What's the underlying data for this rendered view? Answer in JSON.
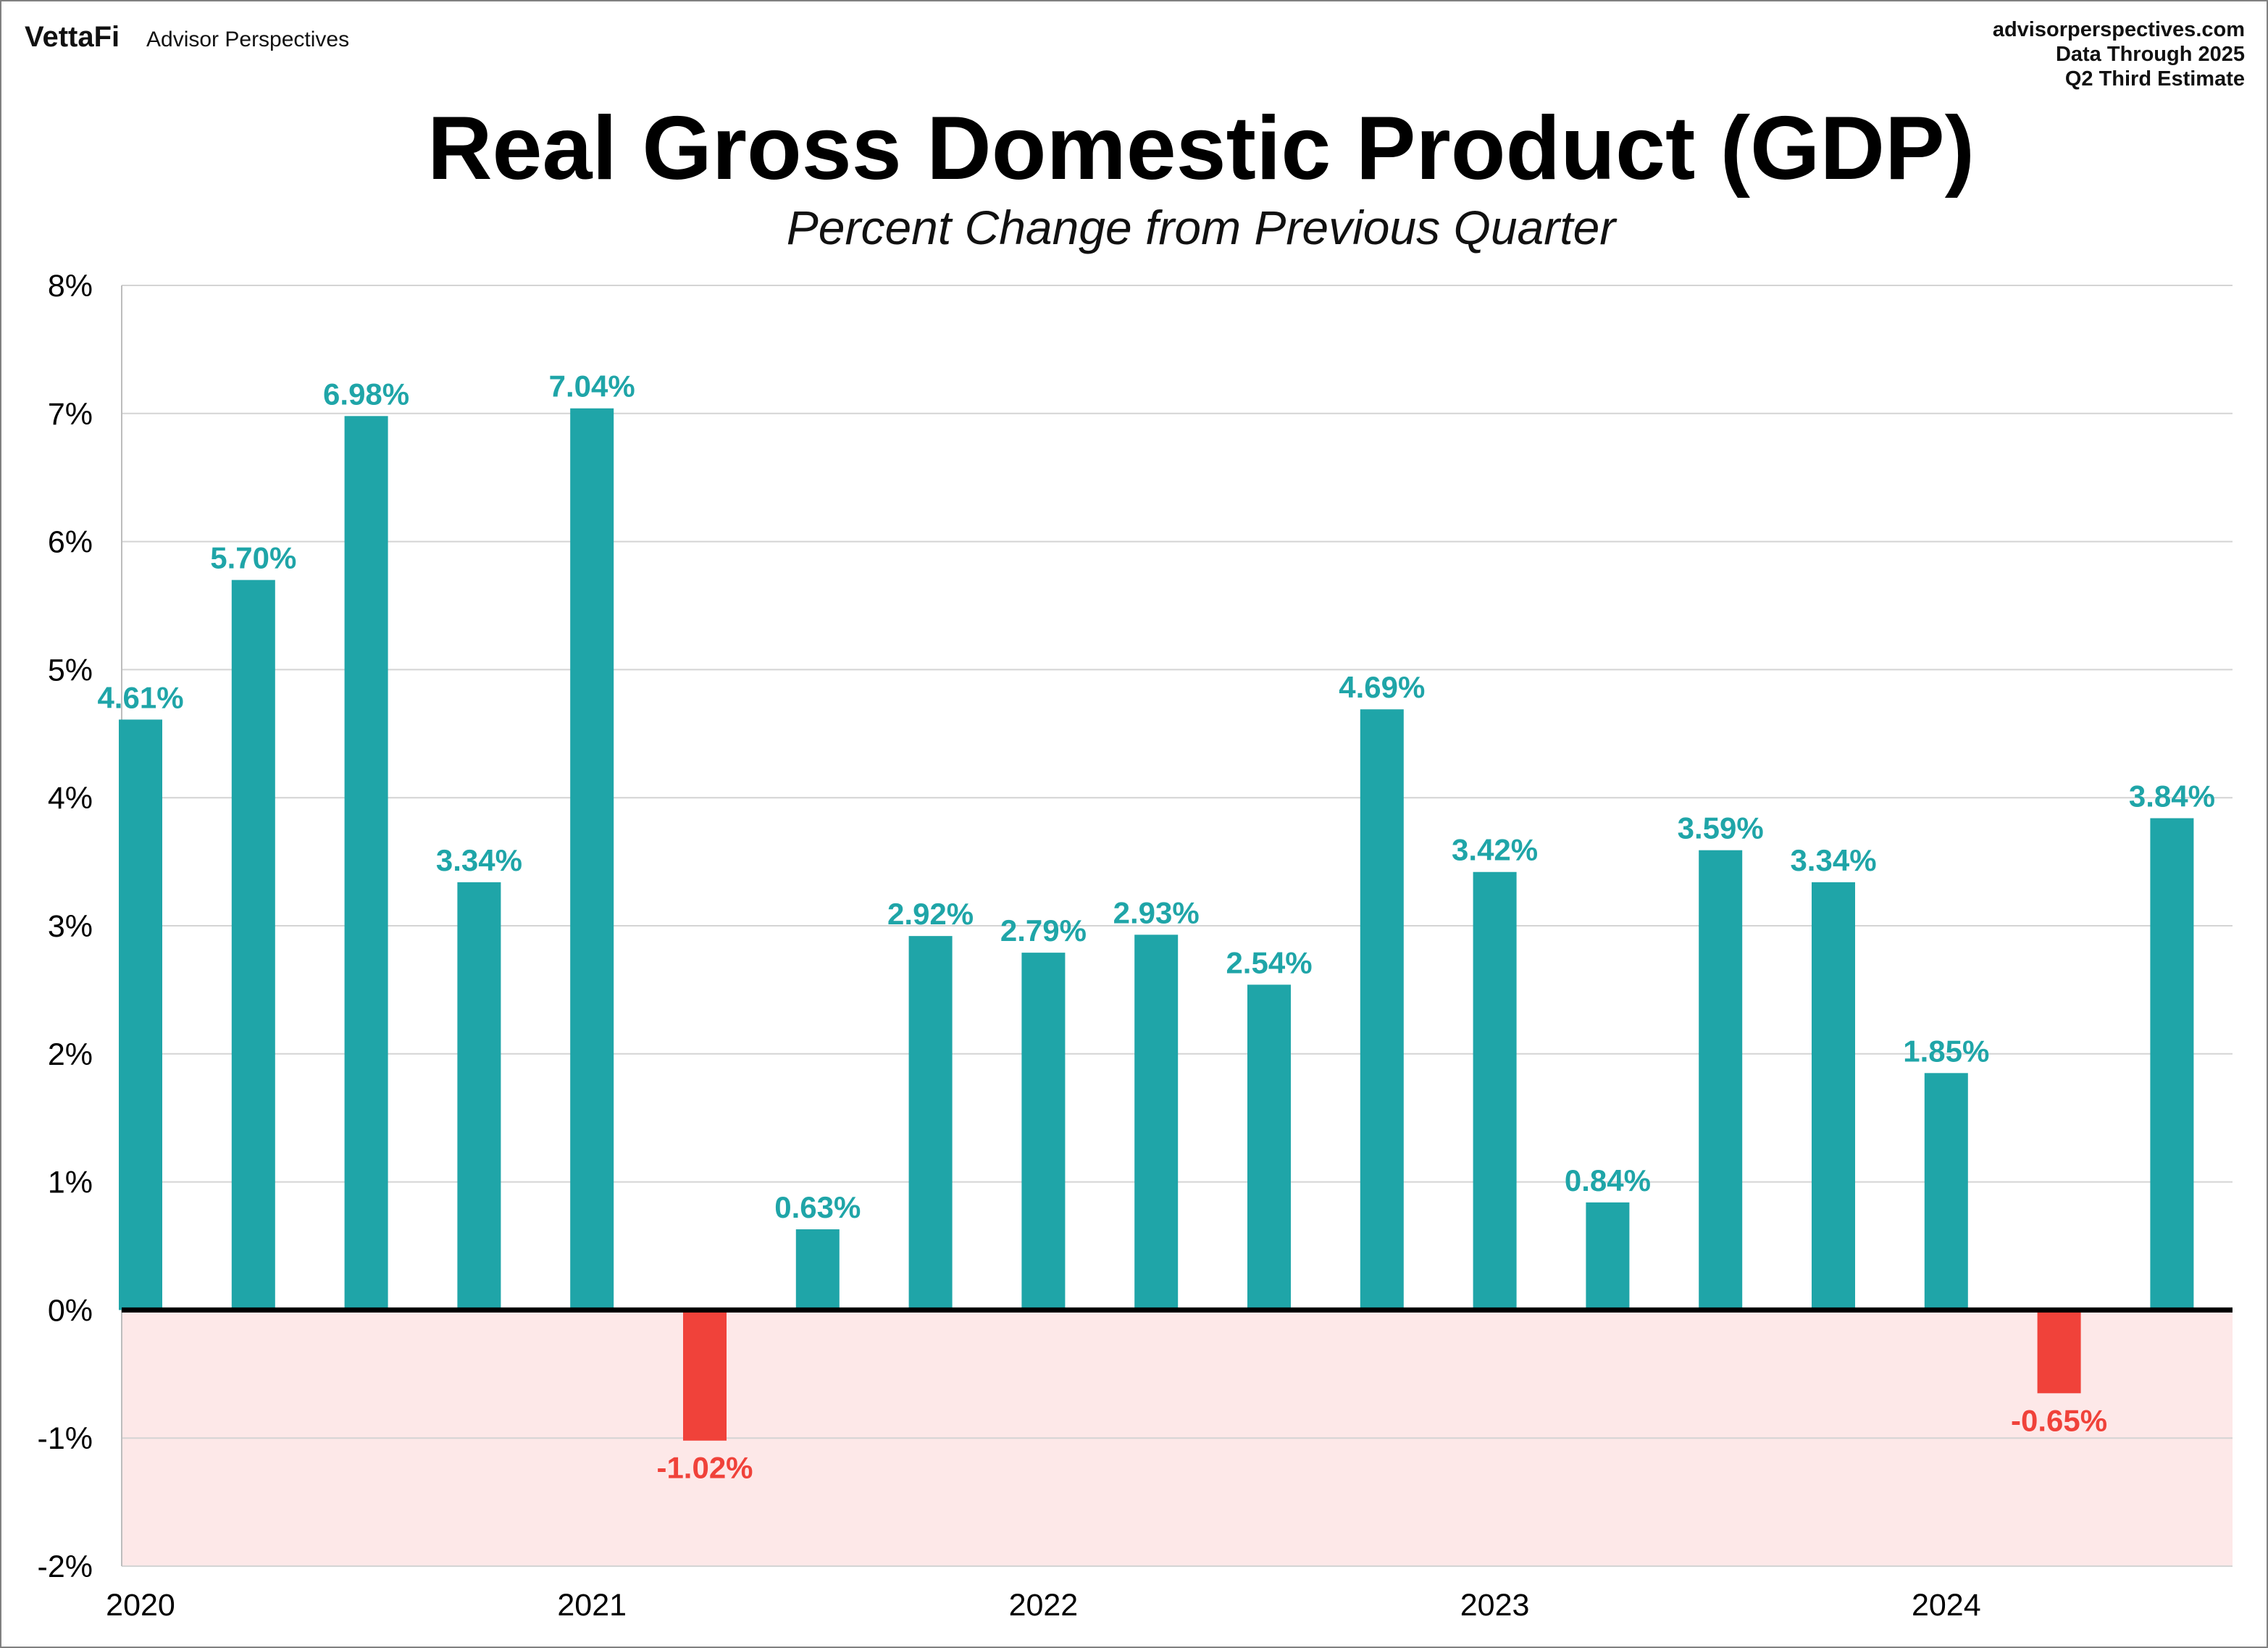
{
  "logo": {
    "brand": "VettaFi",
    "product": "Advisor Perspectives"
  },
  "source": {
    "site": "advisorperspectives.com",
    "note_line1": "Data Through 2025",
    "note_line2": "Q2 Third Estimate"
  },
  "colors": {
    "positive": "#1fa5a8",
    "negative": "#f0423a",
    "negative_band": "#fde8e8",
    "grid": "#d4d4d4",
    "zero_line": "#000000"
  },
  "chart_data": {
    "type": "bar",
    "title": "Real Gross Domestic Product (GDP)",
    "subtitle": "Percent Change from Previous Quarter",
    "values": [
      4.61,
      5.7,
      6.98,
      3.34,
      7.04,
      -1.02,
      0.63,
      2.92,
      2.79,
      2.93,
      2.54,
      4.69,
      3.42,
      0.84,
      3.59,
      3.34,
      1.85,
      -0.65,
      3.84
    ],
    "data_labels": [
      "4.61%",
      "5.70%",
      "6.98%",
      "3.34%",
      "7.04%",
      "-1.02%",
      "0.63%",
      "2.92%",
      "2.79%",
      "2.93%",
      "2.54%",
      "4.69%",
      "3.42%",
      "0.84%",
      "3.59%",
      "3.34%",
      "1.85%",
      "-0.65%",
      "3.84%"
    ],
    "ylim": [
      -2,
      8
    ],
    "yticks": [
      8,
      7,
      6,
      5,
      4,
      3,
      2,
      1,
      0,
      -1,
      -2
    ],
    "ytick_labels": [
      "8%",
      "7%",
      "6%",
      "5%",
      "4%",
      "3%",
      "2%",
      "1%",
      "0%",
      "-1%",
      "-2%"
    ],
    "x_year_labels": [
      "2020",
      "2021",
      "2022",
      "2023",
      "2024"
    ],
    "x_year_label_bar_index": [
      0,
      4,
      8,
      12,
      16
    ],
    "grid": "horizontal",
    "negative_region_shaded": true
  }
}
